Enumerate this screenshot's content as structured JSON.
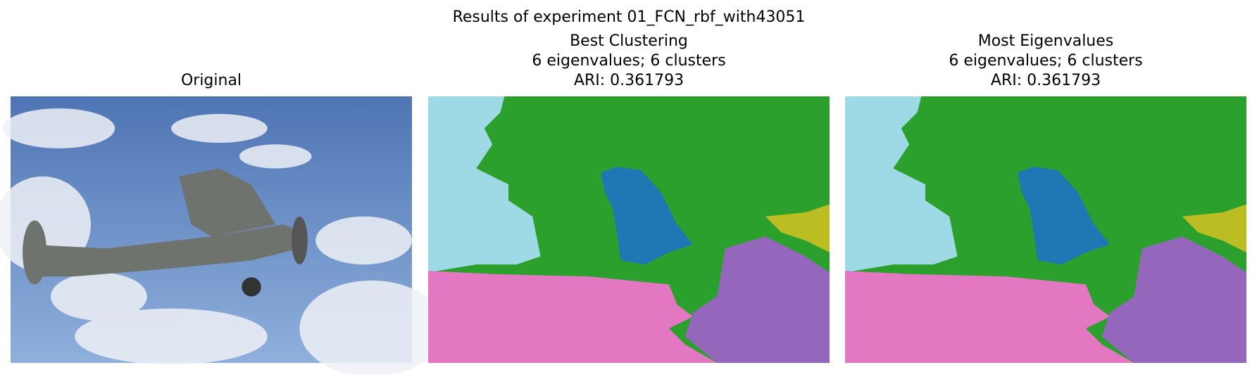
{
  "header": {
    "title": "Results of experiment 01_FCN_rbf_with43051"
  },
  "panels": [
    {
      "title_lines": [
        "Original"
      ]
    },
    {
      "title_lines": [
        "Best Clustering",
        "6 eigenvalues; 6 clusters",
        "ARI: 0.361793"
      ]
    },
    {
      "title_lines": [
        "Most Eigenvalues",
        "6 eigenvalues; 6 clusters",
        "ARI: 0.361793"
      ]
    }
  ]
}
